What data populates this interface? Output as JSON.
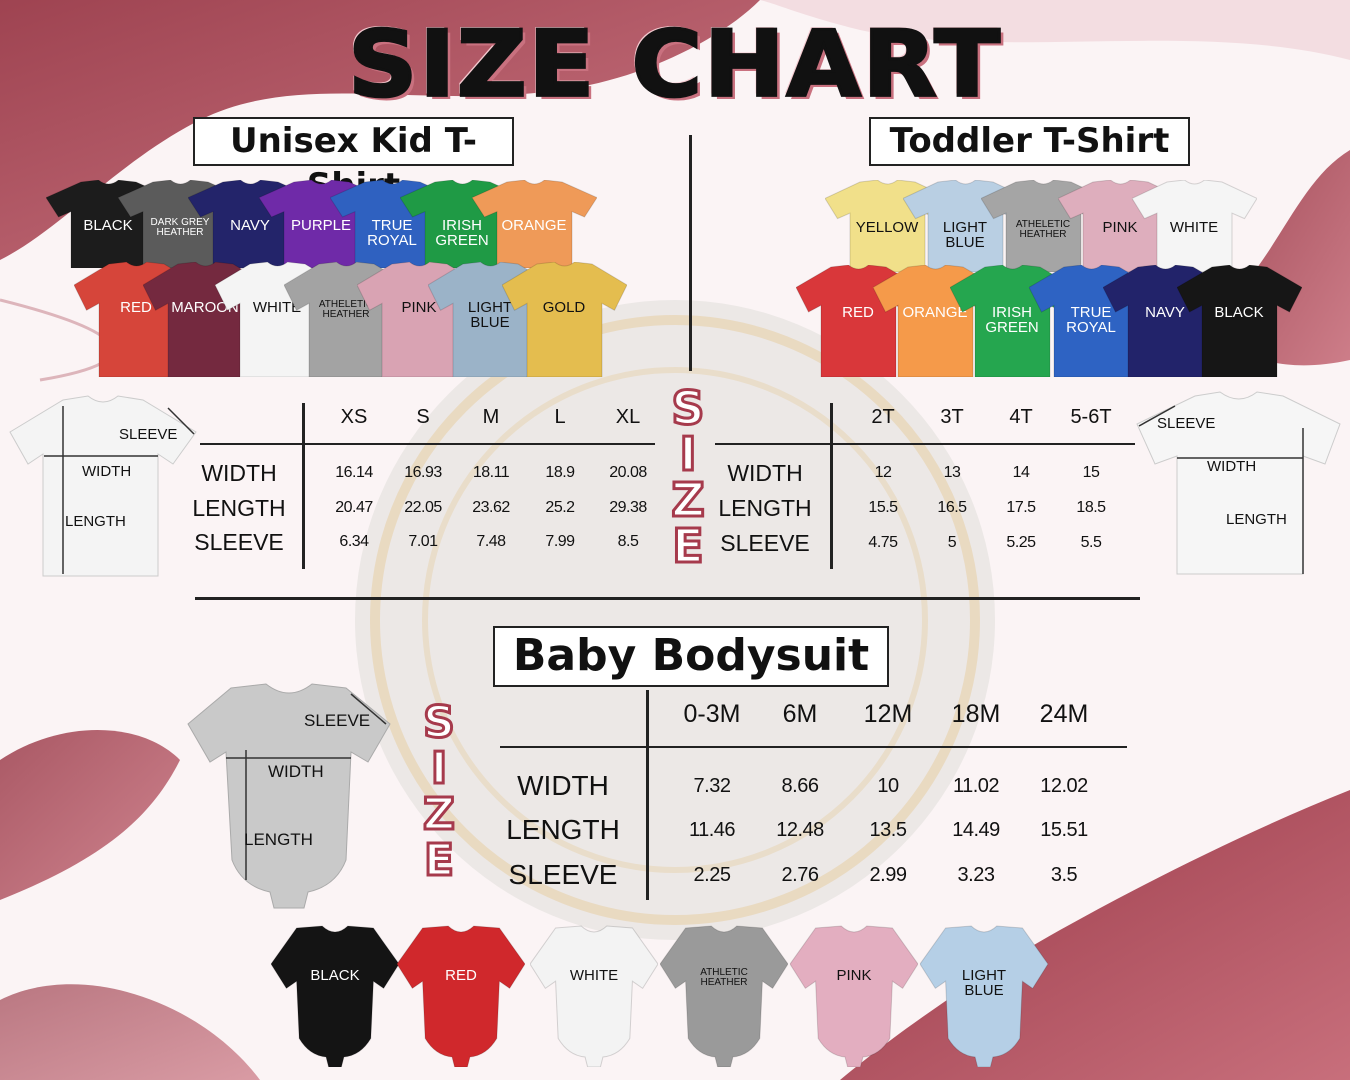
{
  "title": "SIZE CHART",
  "colors": {
    "accent": "#a63a4c",
    "background": "#fbf4f5"
  },
  "kid": {
    "heading": "Unisex Kid T-Shirt",
    "shirts_row1": [
      {
        "label": "BLACK",
        "color": "#1c1c1c",
        "text": "#ffffff"
      },
      {
        "label": "DARK GREY HEATHER",
        "color": "#5b5b5b",
        "text": "#ffffff",
        "small": true
      },
      {
        "label": "NAVY",
        "color": "#23246a",
        "text": "#ffffff"
      },
      {
        "label": "PURPLE",
        "color": "#6f2aa8",
        "text": "#ffffff"
      },
      {
        "label": "TRUE ROYAL",
        "color": "#2f61c0",
        "text": "#ffffff"
      },
      {
        "label": "IRISH GREEN",
        "color": "#1f9a45",
        "text": "#ffffff"
      },
      {
        "label": "ORANGE",
        "color": "#ef9a58",
        "text": "#ffffff"
      }
    ],
    "shirts_row2": [
      {
        "label": "RED",
        "color": "#d6453a",
        "text": "#ffffff"
      },
      {
        "label": "MAROON",
        "color": "#74293f",
        "text": "#ffffff"
      },
      {
        "label": "WHITE",
        "color": "#f4f4f4",
        "text": "#111111"
      },
      {
        "label": "ATHELETIC HEATHER",
        "color": "#a3a3a3",
        "text": "#111111",
        "small": true
      },
      {
        "label": "PINK",
        "color": "#d9a3b3",
        "text": "#111111"
      },
      {
        "label": "LIGHT BLUE",
        "color": "#9bb3c8",
        "text": "#111111"
      },
      {
        "label": "GOLD",
        "color": "#e4bd4f",
        "text": "#111111"
      }
    ],
    "diagram": {
      "sleeve": "SLEEVE",
      "width": "WIDTH",
      "length": "LENGTH"
    },
    "table": {
      "sizes": [
        "XS",
        "S",
        "M",
        "L",
        "XL"
      ],
      "rows": [
        {
          "label": "WIDTH",
          "values": [
            "16.14",
            "16.93",
            "18.11",
            "18.9",
            "20.08"
          ]
        },
        {
          "label": "LENGTH",
          "values": [
            "20.47",
            "22.05",
            "23.62",
            "25.2",
            "29.38"
          ]
        },
        {
          "label": "SLEEVE",
          "values": [
            "6.34",
            "7.01",
            "7.48",
            "7.99",
            "8.5"
          ]
        }
      ]
    }
  },
  "toddler": {
    "heading": "Toddler T-Shirt",
    "shirts_row1": [
      {
        "label": "YELLOW",
        "color": "#f1e08a",
        "text": "#111111"
      },
      {
        "label": "LIGHT BLUE",
        "color": "#b9cfe3",
        "text": "#111111"
      },
      {
        "label": "ATHELETIC HEATHER",
        "color": "#a5a5a5",
        "text": "#111111",
        "small": true
      },
      {
        "label": "PINK",
        "color": "#deaebd",
        "text": "#111111"
      },
      {
        "label": "WHITE",
        "color": "#f5f5f5",
        "text": "#111111"
      }
    ],
    "shirts_row2": [
      {
        "label": "RED",
        "color": "#d9373a",
        "text": "#ffffff"
      },
      {
        "label": "ORANGE",
        "color": "#f59a4a",
        "text": "#ffffff"
      },
      {
        "label": "IRISH GREEN",
        "color": "#25a64f",
        "text": "#ffffff"
      },
      {
        "label": "TRUE ROYAL",
        "color": "#2e63c3",
        "text": "#ffffff"
      },
      {
        "label": "NAVY",
        "color": "#22236a",
        "text": "#ffffff"
      },
      {
        "label": "BLACK",
        "color": "#161616",
        "text": "#ffffff"
      }
    ],
    "diagram": {
      "sleeve": "SLEEVE",
      "width": "WIDTH",
      "length": "LENGTH"
    },
    "table": {
      "sizes": [
        "2T",
        "3T",
        "4T",
        "5-6T"
      ],
      "rows": [
        {
          "label": "WIDTH",
          "values": [
            "12",
            "13",
            "14",
            "15"
          ]
        },
        {
          "label": "LENGTH",
          "values": [
            "15.5",
            "16.5",
            "17.5",
            "18.5"
          ]
        },
        {
          "label": "SLEEVE",
          "values": [
            "4.75",
            "5",
            "5.25",
            "5.5"
          ]
        }
      ]
    }
  },
  "size_word": [
    "S",
    "I",
    "Z",
    "E"
  ],
  "baby": {
    "heading": "Baby Bodysuit",
    "diagram": {
      "sleeve": "SLEEVE",
      "width": "WIDTH",
      "length": "LENGTH"
    },
    "table": {
      "sizes": [
        "0-3M",
        "6M",
        "12M",
        "18M",
        "24M"
      ],
      "rows": [
        {
          "label": "WIDTH",
          "values": [
            "7.32",
            "8.66",
            "10",
            "11.02",
            "12.02"
          ]
        },
        {
          "label": "LENGTH",
          "values": [
            "11.46",
            "12.48",
            "13.5",
            "14.49",
            "15.51"
          ]
        },
        {
          "label": "SLEEVE",
          "values": [
            "2.25",
            "2.76",
            "2.99",
            "3.23",
            "3.5"
          ]
        }
      ]
    },
    "bodysuits": [
      {
        "label": "BLACK",
        "color": "#141414",
        "text": "#ffffff"
      },
      {
        "label": "RED",
        "color": "#d0282c",
        "text": "#ffffff"
      },
      {
        "label": "WHITE",
        "color": "#f3f3f3",
        "text": "#111111"
      },
      {
        "label": "ATHLETIC HEATHER",
        "color": "#9a9a9a",
        "text": "#111111",
        "small": true
      },
      {
        "label": "PINK",
        "color": "#e3aec0",
        "text": "#111111"
      },
      {
        "label": "LIGHT BLUE",
        "color": "#b5cfe6",
        "text": "#111111"
      }
    ]
  }
}
